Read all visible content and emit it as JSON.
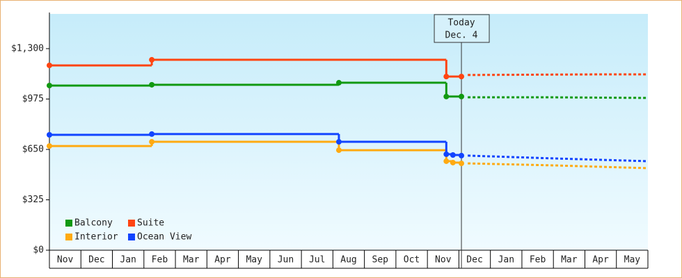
{
  "chart_data": {
    "type": "step-line",
    "categories": [
      "Nov",
      "Dec",
      "Jan",
      "Feb",
      "Mar",
      "Apr",
      "May",
      "Jun",
      "Jul",
      "Aug",
      "Sep",
      "Oct",
      "Nov",
      "Dec",
      "Jan",
      "Feb",
      "Mar",
      "Apr",
      "May"
    ],
    "xlim": [
      0,
      19
    ],
    "ylim": [
      0,
      1524
    ],
    "yticks": [
      {
        "value": 0,
        "label": "$0"
      },
      {
        "value": 325,
        "label": "$325"
      },
      {
        "value": 650,
        "label": "$650"
      },
      {
        "value": 975,
        "label": "$975"
      },
      {
        "value": 1300,
        "label": "$1,300"
      }
    ],
    "today": {
      "x": 13.08,
      "label": [
        "Today",
        "Dec. 4"
      ]
    },
    "series": [
      {
        "name": "Balcony",
        "color": "#119911",
        "x": [
          0,
          3.25,
          9.19,
          12.6,
          13.08
        ],
        "values": [
          1062,
          1067,
          1080,
          991,
          991
        ],
        "forecast_x": [
          13.28,
          16,
          19
        ],
        "forecast_values": [
          986,
          986,
          982
        ]
      },
      {
        "name": "Suite",
        "color": "#ff4411",
        "x": [
          0,
          3.25,
          12.6,
          13.08
        ],
        "values": [
          1192,
          1228,
          1120,
          1120
        ],
        "forecast_x": [
          13.28,
          17.4,
          19
        ],
        "forecast_values": [
          1130,
          1134,
          1134
        ]
      },
      {
        "name": "Interior",
        "color": "#ffaa11",
        "x": [
          0,
          3.25,
          9.19,
          12.6,
          12.81,
          13.08
        ],
        "values": [
          672,
          699,
          645,
          574,
          565,
          560
        ],
        "forecast_x": [
          13.28,
          16,
          19
        ],
        "forecast_values": [
          560,
          547,
          529
        ]
      },
      {
        "name": "Ocean View",
        "color": "#1144ff",
        "x": [
          0,
          3.25,
          9.19,
          12.6,
          12.81,
          13.08
        ],
        "values": [
          744,
          749,
          699,
          619,
          614,
          610
        ],
        "forecast_x": [
          13.28,
          16,
          19
        ],
        "forecast_values": [
          610,
          592,
          574
        ]
      }
    ]
  }
}
